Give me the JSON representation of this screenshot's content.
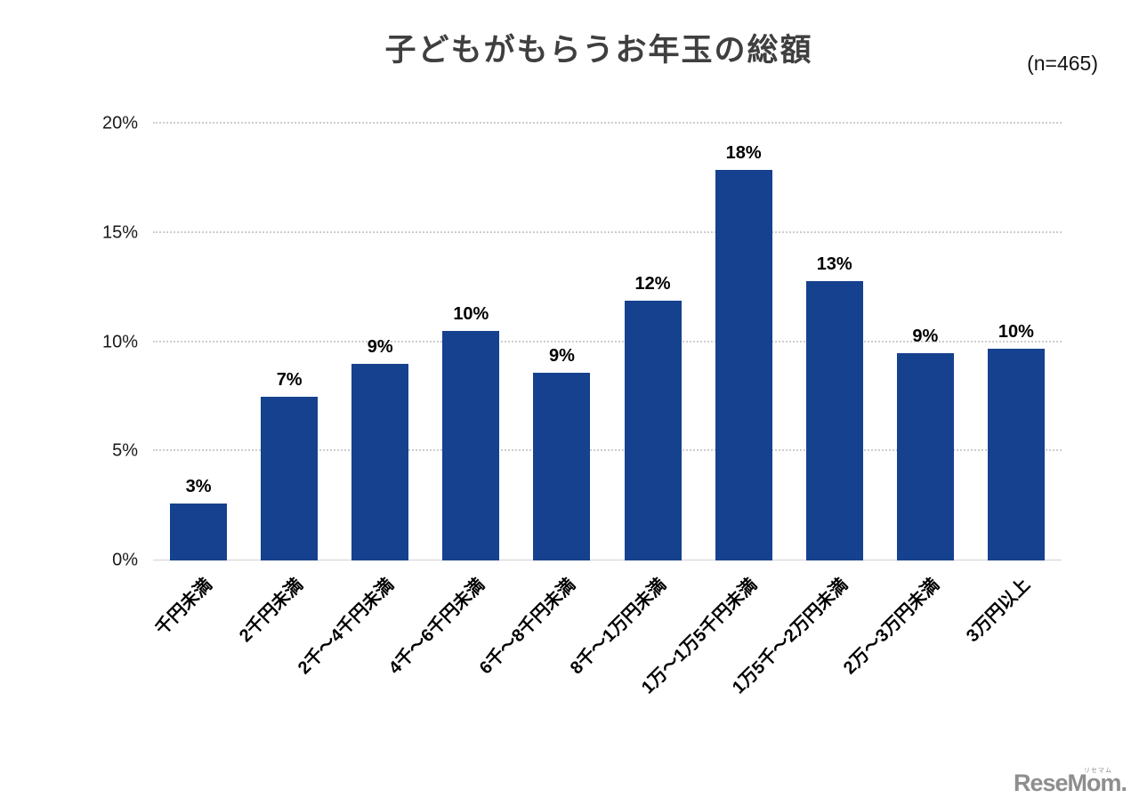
{
  "title": "子どもがもらうお年玉の総額",
  "sample_note": "(n=465)",
  "logo": {
    "text": "ReseMom.",
    "ruby": "リセマム"
  },
  "colors": {
    "bar": "#16418e",
    "title_text": "#3f3f3f",
    "gridline": "#cdcdcd",
    "baseline": "#d2d2d2",
    "label_text": "#000000",
    "logo_gray": "#8e8e8e"
  },
  "chart_data": {
    "type": "bar",
    "title": "子どもがもらうお年玉の総額",
    "sample_note": "(n=465)",
    "categories": [
      "千円未満",
      "2千円未満",
      "2千～4千円未満",
      "4千～6千円未満",
      "6千～8千円未満",
      "8千～1万円未満",
      "1万～1万5千円未満",
      "1万5千～2万円未満",
      "2万～3万円未満",
      "3万円以上"
    ],
    "values": [
      3,
      7,
      9,
      10,
      9,
      12,
      18,
      13,
      9,
      10
    ],
    "data_labels": [
      "3%",
      "7%",
      "9%",
      "10%",
      "9%",
      "12%",
      "18%",
      "13%",
      "9%",
      "10%"
    ],
    "bar_heights_pct": [
      2.6,
      7.5,
      9.0,
      10.5,
      8.6,
      11.9,
      17.9,
      12.8,
      9.5,
      9.7
    ],
    "xlabel": "",
    "ylabel": "",
    "ylim": [
      0,
      20
    ],
    "yticks": [
      {
        "value": 0,
        "label": "0%"
      },
      {
        "value": 5,
        "label": "5%"
      },
      {
        "value": 10,
        "label": "10%"
      },
      {
        "value": 15,
        "label": "15%"
      },
      {
        "value": 20,
        "label": "20%"
      }
    ],
    "grid": "horizontal-dotted",
    "legend": "none",
    "bar_color": "#16418e"
  }
}
